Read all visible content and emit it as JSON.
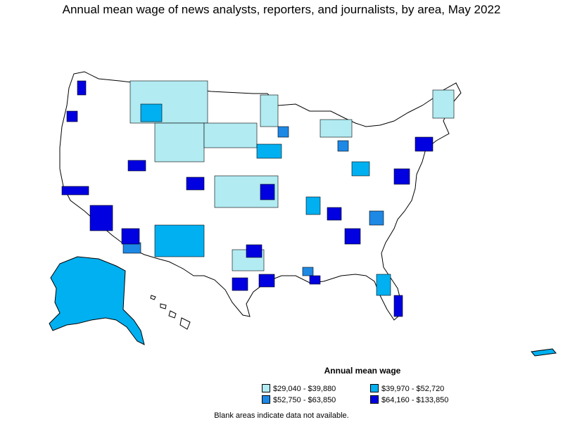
{
  "title": "Annual mean wage of news analysts, reporters, and journalists, by area, May 2022",
  "legend": {
    "title": "Annual mean wage",
    "items": [
      {
        "label": "$29,040 - $39,880",
        "color": "#b2ebf2"
      },
      {
        "label": "$39,970 - $52,720",
        "color": "#00b0f0"
      },
      {
        "label": "$52,750 - $63,850",
        "color": "#1e88e5"
      },
      {
        "label": "$64,160 - $133,850",
        "color": "#0000e0"
      }
    ]
  },
  "footnote": "Blank areas indicate data not available.",
  "colors": {
    "border": "#000000",
    "blank": "#ffffff"
  }
}
